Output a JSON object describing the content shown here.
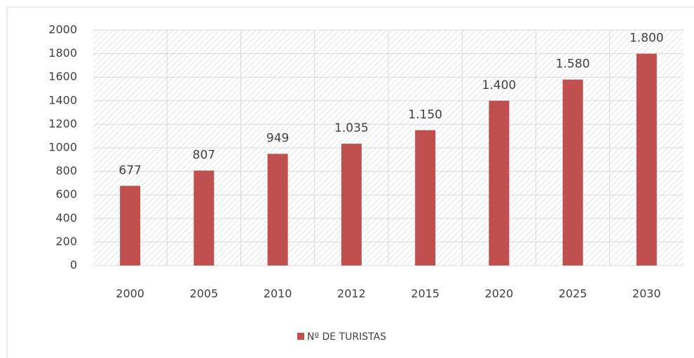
{
  "chart_data": {
    "type": "bar",
    "categories": [
      "2000",
      "2005",
      "2010",
      "2012",
      "2015",
      "2020",
      "2025",
      "2030"
    ],
    "series": [
      {
        "name": "Nº DE TURISTAS",
        "color": "#c0504d",
        "values": [
          677,
          807,
          949,
          1035,
          1150,
          1400,
          1580,
          1800
        ],
        "value_labels": [
          "677",
          "807",
          "949",
          "1.035",
          "1.150",
          "1.400",
          "1.580",
          "1.800"
        ]
      }
    ],
    "ylim": [
      0,
      2000
    ],
    "yticks": [
      0,
      200,
      400,
      600,
      800,
      1000,
      1200,
      1400,
      1600,
      1800,
      2000
    ],
    "grid": true,
    "legend": "bottom"
  }
}
